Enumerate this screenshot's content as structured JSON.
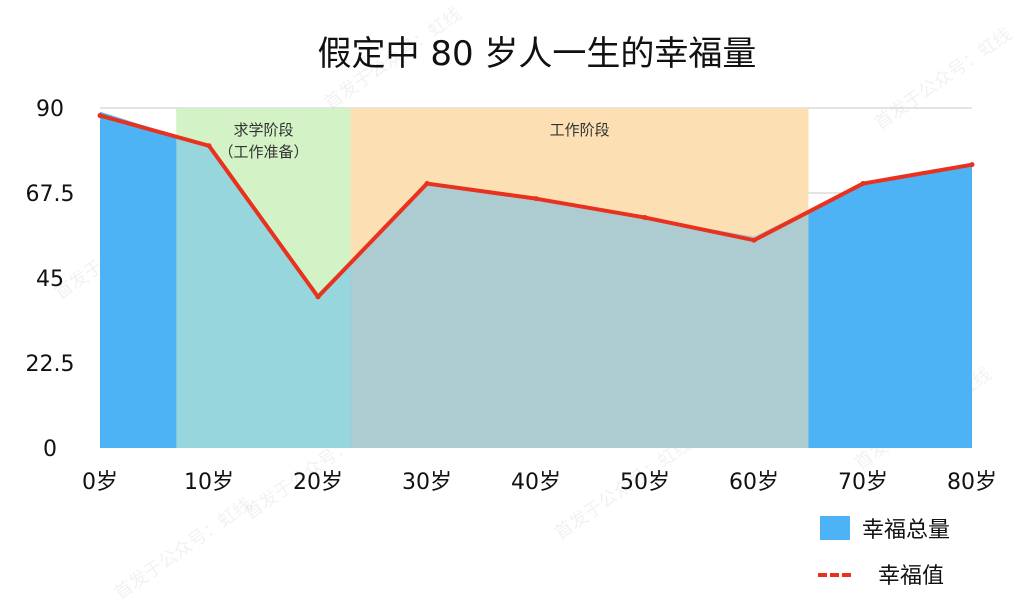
{
  "chart_data": {
    "type": "area",
    "title": "假定中 80 岁人一生的幸福量",
    "categories": [
      "0岁",
      "10岁",
      "20岁",
      "30岁",
      "40岁",
      "50岁",
      "60岁",
      "70岁",
      "80岁"
    ],
    "x": [
      0,
      10,
      20,
      30,
      40,
      50,
      60,
      70,
      80
    ],
    "ylim": [
      0,
      90
    ],
    "yticks": [
      "0",
      "22.5",
      "45",
      "67.5",
      "90"
    ],
    "grid": true,
    "legend_position": "bottom-right",
    "series": [
      {
        "name": "幸福总量",
        "kind": "area",
        "color": "#4db3f5",
        "x": [
          0,
          10,
          20,
          30,
          40,
          50,
          60,
          70,
          80
        ],
        "values": [
          89,
          80,
          41,
          70,
          66,
          61,
          56,
          70,
          75
        ]
      },
      {
        "name": "幸福值",
        "kind": "line",
        "color": "#e8321e",
        "x": [
          0,
          10,
          20,
          30,
          40,
          50,
          60,
          70,
          80
        ],
        "values": [
          88,
          80,
          40,
          70,
          66,
          61,
          55,
          70,
          75
        ]
      }
    ],
    "bands": [
      {
        "from": 7,
        "to": 23,
        "lines": [
          "求学阶段",
          "（工作准备）"
        ],
        "color": "#d3f2c6"
      },
      {
        "from": 23,
        "to": 65,
        "lines": [
          "工作阶段"
        ],
        "color": "#fce0b3"
      }
    ]
  },
  "watermark": "首发于公众号：虹线"
}
